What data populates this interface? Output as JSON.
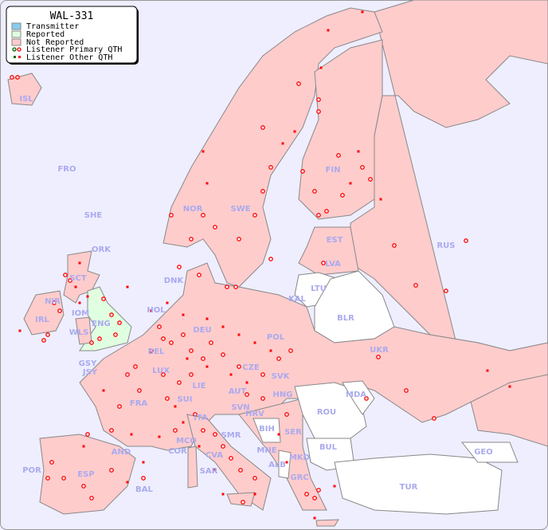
{
  "title": "WAL-331",
  "legend": [
    {
      "label": "Transmitter",
      "color": "#88ccee"
    },
    {
      "label": "Reported",
      "color": "#e0ffe0"
    },
    {
      "label": "Not Reported",
      "color": "#ffcccc"
    },
    {
      "label": "Listener Primary QTH",
      "marker": "circle",
      "colors": [
        "#006600",
        "#ff0000"
      ]
    },
    {
      "label": "Listener Other QTH",
      "marker": "square",
      "colors": [
        "#006600",
        "#ff0000"
      ]
    }
  ],
  "colors": {
    "sea": "#eeeeff",
    "not_reported": "#ffcccc",
    "reported": "#e0ffe0",
    "no_data": "#ffffff",
    "label": "#aaaaee",
    "marker": "#ff0000"
  },
  "countries": {
    "ISL": "ISL",
    "FRO": "FRO",
    "SHE": "SHE",
    "ORK": "ORK",
    "SCT": "SCT",
    "NIR": "NIR",
    "IRL": "IRL",
    "IOM": "IOM",
    "ENG": "ENG",
    "WLS": "WLS",
    "GSY": "GSY",
    "JSY": "JSY",
    "HOL": "HOL",
    "BEL": "BEL",
    "LUX": "LUX",
    "DEU": "DEU",
    "DNK": "DNK",
    "NOR": "NOR",
    "SWE": "SWE",
    "FIN": "FIN",
    "EST": "EST",
    "LVA": "LVA",
    "LTU": "LTU",
    "KAL": "KAL",
    "BLR": "BLR",
    "POL": "POL",
    "CZE": "CZE",
    "SVK": "SVK",
    "AUT": "AUT",
    "LIE": "LIE",
    "SUI": "SUI",
    "FRA": "FRA",
    "HNG": "HNG",
    "UKR": "UKR",
    "RUS": "RUS",
    "MDA": "MDA",
    "ROU": "ROU",
    "SVN": "SVN",
    "HRV": "HRV",
    "BIH": "BIH",
    "SER": "SER",
    "MNE": "MNE",
    "ALB": "ALB",
    "MKD": "MKD",
    "BUL": "BUL",
    "GRC": "GRC",
    "ITA": "ITA",
    "SMR": "SMR",
    "MCO": "MCO",
    "COR": "COR",
    "CVA": "CVA",
    "SAR": "SAR",
    "AND": "AND",
    "POR": "POR",
    "ESP": "ESP",
    "BAL": "BAL",
    "TUR": "TUR",
    "GEO": "GEO"
  }
}
